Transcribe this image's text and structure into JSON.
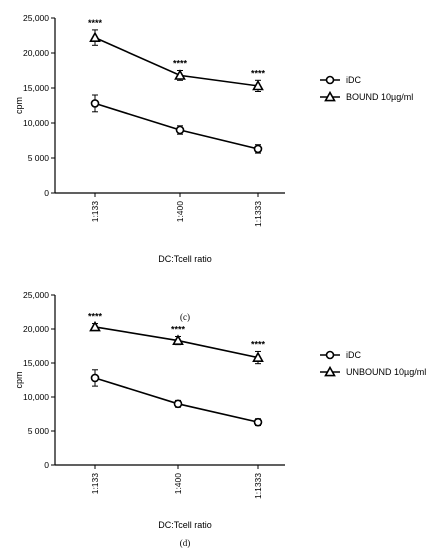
{
  "chart_data": [
    {
      "type": "line",
      "panel_label": "(c)",
      "xlabel": "DC:Tcell ratio",
      "ylabel": "cpm",
      "categories": [
        "1:133",
        "1:400",
        "1:1333"
      ],
      "ylim": [
        0,
        25000
      ],
      "yticks": [
        "0",
        "5 000",
        "10,000",
        "15,000",
        "20,000",
        "25,000"
      ],
      "ytick_values": [
        0,
        5000,
        10000,
        15000,
        20000,
        25000
      ],
      "legend_position": "right",
      "series": [
        {
          "name": "iDC",
          "marker": "circle",
          "values": [
            12800,
            9000,
            6300
          ],
          "errors": [
            1200,
            600,
            600
          ]
        },
        {
          "name": "BOUND 10µg/ml",
          "marker": "triangle",
          "values": [
            22200,
            16800,
            15300
          ],
          "errors": [
            1100,
            700,
            800
          ]
        }
      ],
      "annotations": [
        "****",
        "****",
        "****"
      ]
    },
    {
      "type": "line",
      "panel_label": "(d)",
      "xlabel": "DC:Tcell ratio",
      "ylabel": "cpm",
      "categories": [
        "1:133",
        "1:400",
        "1:1333"
      ],
      "ylim": [
        0,
        25000
      ],
      "yticks": [
        "0",
        "5 000",
        "10,000",
        "15,000",
        "20,000",
        "25,000"
      ],
      "ytick_values": [
        0,
        5000,
        10000,
        15000,
        20000,
        25000
      ],
      "legend_position": "right",
      "series": [
        {
          "name": "iDC",
          "marker": "circle",
          "values": [
            12800,
            9000,
            6300
          ],
          "errors": [
            1200,
            500,
            500
          ]
        },
        {
          "name": "UNBOUND 10µg/ml",
          "marker": "triangle",
          "values": [
            20300,
            18300,
            15800
          ],
          "errors": [
            500,
            600,
            900
          ]
        }
      ],
      "annotations": [
        "****",
        "****",
        "****"
      ]
    }
  ],
  "colors": {
    "line": "#000000",
    "background": "#ffffff"
  }
}
